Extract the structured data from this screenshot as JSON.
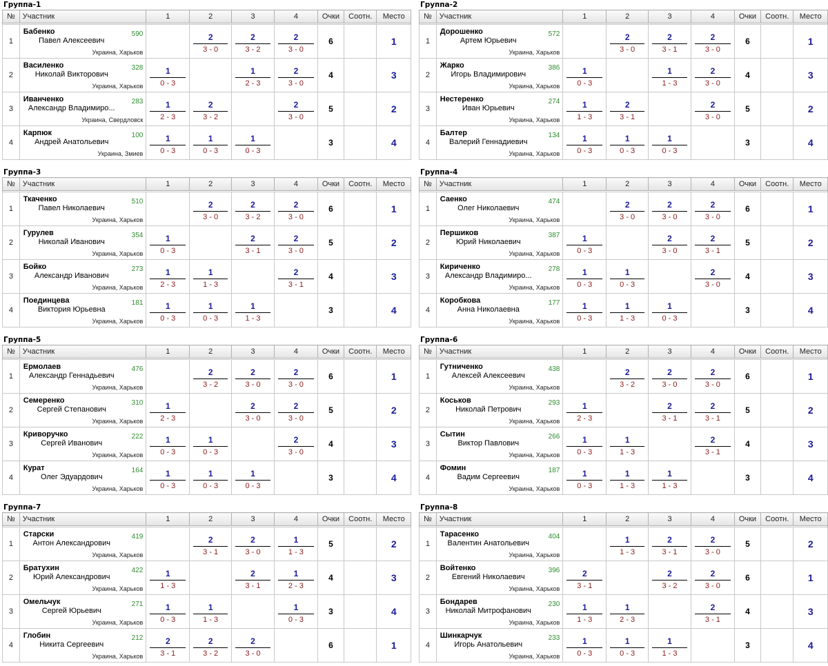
{
  "header": {
    "num": "№",
    "participant": "Участник",
    "cols": [
      "1",
      "2",
      "3",
      "4"
    ],
    "points": "Очки",
    "ratio": "Соотн.",
    "place": "Место"
  },
  "groups": [
    {
      "title": "Группа-1",
      "rows": [
        {
          "num": "1",
          "surname": "Бабенко",
          "firstname": "Павел Алексеевич",
          "rating": "590",
          "location": "Украина, Харьков",
          "results": [
            null,
            {
              "w": "2",
              "s": "3 - 0"
            },
            {
              "w": "2",
              "s": "3 - 2"
            },
            {
              "w": "2",
              "s": "3 - 0"
            }
          ],
          "points": "6",
          "ratio": "",
          "place": "1"
        },
        {
          "num": "2",
          "surname": "Василенко",
          "firstname": "Николай Викторович",
          "rating": "328",
          "location": "Украина, Харьков",
          "results": [
            {
              "w": "1",
              "s": "0 - 3"
            },
            null,
            {
              "w": "1",
              "s": "2 - 3"
            },
            {
              "w": "2",
              "s": "3 - 0"
            }
          ],
          "points": "4",
          "ratio": "",
          "place": "3"
        },
        {
          "num": "3",
          "surname": "Иванченко",
          "firstname": "Александр Владимиро...",
          "rating": "283",
          "location": "Украина, Свердловск",
          "results": [
            {
              "w": "1",
              "s": "2 - 3"
            },
            {
              "w": "2",
              "s": "3 - 2"
            },
            null,
            {
              "w": "2",
              "s": "3 - 0"
            }
          ],
          "points": "5",
          "ratio": "",
          "place": "2"
        },
        {
          "num": "4",
          "surname": "Карпюк",
          "firstname": "Андрей Анатольевич",
          "rating": "100",
          "location": "Украина, Змиев",
          "results": [
            {
              "w": "1",
              "s": "0 - 3"
            },
            {
              "w": "1",
              "s": "0 - 3"
            },
            {
              "w": "1",
              "s": "0 - 3"
            },
            null
          ],
          "points": "3",
          "ratio": "",
          "place": "4"
        }
      ]
    },
    {
      "title": "Группа-2",
      "rows": [
        {
          "num": "1",
          "surname": "Дорошенко",
          "firstname": "Артем Юрьевич",
          "rating": "572",
          "location": "Украина, Харьков",
          "results": [
            null,
            {
              "w": "2",
              "s": "3 - 0"
            },
            {
              "w": "2",
              "s": "3 - 1"
            },
            {
              "w": "2",
              "s": "3 - 0"
            }
          ],
          "points": "6",
          "ratio": "",
          "place": "1"
        },
        {
          "num": "2",
          "surname": "Жарко",
          "firstname": "Игорь Владимирович",
          "rating": "386",
          "location": "Украина, Харьков",
          "results": [
            {
              "w": "1",
              "s": "0 - 3"
            },
            null,
            {
              "w": "1",
              "s": "1 - 3"
            },
            {
              "w": "2",
              "s": "3 - 0"
            }
          ],
          "points": "4",
          "ratio": "",
          "place": "3"
        },
        {
          "num": "3",
          "surname": "Нестеренко",
          "firstname": "Иван Юрьевич",
          "rating": "274",
          "location": "Украина, Харьков",
          "results": [
            {
              "w": "1",
              "s": "1 - 3"
            },
            {
              "w": "2",
              "s": "3 - 1"
            },
            null,
            {
              "w": "2",
              "s": "3 - 0"
            }
          ],
          "points": "5",
          "ratio": "",
          "place": "2"
        },
        {
          "num": "4",
          "surname": "Балтер",
          "firstname": "Валерий Геннадиевич",
          "rating": "134",
          "location": "Украина, Харьков",
          "results": [
            {
              "w": "1",
              "s": "0 - 3"
            },
            {
              "w": "1",
              "s": "0 - 3"
            },
            {
              "w": "1",
              "s": "0 - 3"
            },
            null
          ],
          "points": "3",
          "ratio": "",
          "place": "4"
        }
      ]
    },
    {
      "title": "Группа-3",
      "rows": [
        {
          "num": "1",
          "surname": "Ткаченко",
          "firstname": "Павел Николаевич",
          "rating": "510",
          "location": "Украина, Харьков",
          "results": [
            null,
            {
              "w": "2",
              "s": "3 - 0"
            },
            {
              "w": "2",
              "s": "3 - 2"
            },
            {
              "w": "2",
              "s": "3 - 0"
            }
          ],
          "points": "6",
          "ratio": "",
          "place": "1"
        },
        {
          "num": "2",
          "surname": "Гурулев",
          "firstname": "Николай Иванович",
          "rating": "354",
          "location": "Украина, Харьков",
          "results": [
            {
              "w": "1",
              "s": "0 - 3"
            },
            null,
            {
              "w": "2",
              "s": "3 - 1"
            },
            {
              "w": "2",
              "s": "3 - 0"
            }
          ],
          "points": "5",
          "ratio": "",
          "place": "2"
        },
        {
          "num": "3",
          "surname": "Бойко",
          "firstname": "Александр Иванович",
          "rating": "273",
          "location": "Украина, Харьков",
          "results": [
            {
              "w": "1",
              "s": "2 - 3"
            },
            {
              "w": "1",
              "s": "1 - 3"
            },
            null,
            {
              "w": "2",
              "s": "3 - 1"
            }
          ],
          "points": "4",
          "ratio": "",
          "place": "3"
        },
        {
          "num": "4",
          "surname": "Поединцева",
          "firstname": "Виктория Юрьевна",
          "rating": "181",
          "location": "Украина, Харьков",
          "results": [
            {
              "w": "1",
              "s": "0 - 3"
            },
            {
              "w": "1",
              "s": "0 - 3"
            },
            {
              "w": "1",
              "s": "1 - 3"
            },
            null
          ],
          "points": "3",
          "ratio": "",
          "place": "4"
        }
      ]
    },
    {
      "title": "Группа-4",
      "rows": [
        {
          "num": "1",
          "surname": "Саенко",
          "firstname": "Олег Николаевич",
          "rating": "474",
          "location": "Украина, Харьков",
          "results": [
            null,
            {
              "w": "2",
              "s": "3 - 0"
            },
            {
              "w": "2",
              "s": "3 - 0"
            },
            {
              "w": "2",
              "s": "3 - 0"
            }
          ],
          "points": "6",
          "ratio": "",
          "place": "1"
        },
        {
          "num": "2",
          "surname": "Першиков",
          "firstname": "Юрий Николаевич",
          "rating": "387",
          "location": "Украина, Харьков",
          "results": [
            {
              "w": "1",
              "s": "0 - 3"
            },
            null,
            {
              "w": "2",
              "s": "3 - 0"
            },
            {
              "w": "2",
              "s": "3 - 1"
            }
          ],
          "points": "5",
          "ratio": "",
          "place": "2"
        },
        {
          "num": "3",
          "surname": "Кириченко",
          "firstname": "Александр Владимиро...",
          "rating": "278",
          "location": "Украина, Харьков",
          "results": [
            {
              "w": "1",
              "s": "0 - 3"
            },
            {
              "w": "1",
              "s": "0 - 3"
            },
            null,
            {
              "w": "2",
              "s": "3 - 0"
            }
          ],
          "points": "4",
          "ratio": "",
          "place": "3"
        },
        {
          "num": "4",
          "surname": "Коробкова",
          "firstname": "Анна Николаевна",
          "rating": "177",
          "location": "Украина, Харьков",
          "results": [
            {
              "w": "1",
              "s": "0 - 3"
            },
            {
              "w": "1",
              "s": "1 - 3"
            },
            {
              "w": "1",
              "s": "0 - 3"
            },
            null
          ],
          "points": "3",
          "ratio": "",
          "place": "4"
        }
      ]
    },
    {
      "title": "Группа-5",
      "rows": [
        {
          "num": "1",
          "surname": "Ермолаев",
          "firstname": "Александр Геннадьевич",
          "rating": "476",
          "location": "Украина, Харьков",
          "results": [
            null,
            {
              "w": "2",
              "s": "3 - 2"
            },
            {
              "w": "2",
              "s": "3 - 0"
            },
            {
              "w": "2",
              "s": "3 - 0"
            }
          ],
          "points": "6",
          "ratio": "",
          "place": "1"
        },
        {
          "num": "2",
          "surname": "Семеренко",
          "firstname": "Сергей Степанович",
          "rating": "310",
          "location": "Украина, Харьков",
          "results": [
            {
              "w": "1",
              "s": "2 - 3"
            },
            null,
            {
              "w": "2",
              "s": "3 - 0"
            },
            {
              "w": "2",
              "s": "3 - 0"
            }
          ],
          "points": "5",
          "ratio": "",
          "place": "2"
        },
        {
          "num": "3",
          "surname": "Криворучко",
          "firstname": "Сергей Иванович",
          "rating": "222",
          "location": "Украина, Харьков",
          "results": [
            {
              "w": "1",
              "s": "0 - 3"
            },
            {
              "w": "1",
              "s": "0 - 3"
            },
            null,
            {
              "w": "2",
              "s": "3 - 0"
            }
          ],
          "points": "4",
          "ratio": "",
          "place": "3"
        },
        {
          "num": "4",
          "surname": "Курат",
          "firstname": "Олег Эдуардович",
          "rating": "164",
          "location": "Украина, Харьков",
          "results": [
            {
              "w": "1",
              "s": "0 - 3"
            },
            {
              "w": "1",
              "s": "0 - 3"
            },
            {
              "w": "1",
              "s": "0 - 3"
            },
            null
          ],
          "points": "3",
          "ratio": "",
          "place": "4"
        }
      ]
    },
    {
      "title": "Группа-6",
      "rows": [
        {
          "num": "1",
          "surname": "Гутниченко",
          "firstname": "Алексей Алексеевич",
          "rating": "438",
          "location": "Украина, Харьков",
          "results": [
            null,
            {
              "w": "2",
              "s": "3 - 2"
            },
            {
              "w": "2",
              "s": "3 - 0"
            },
            {
              "w": "2",
              "s": "3 - 0"
            }
          ],
          "points": "6",
          "ratio": "",
          "place": "1"
        },
        {
          "num": "2",
          "surname": "Коськов",
          "firstname": "Николай Петрович",
          "rating": "293",
          "location": "Украина, Харьков",
          "results": [
            {
              "w": "1",
              "s": "2 - 3"
            },
            null,
            {
              "w": "2",
              "s": "3 - 1"
            },
            {
              "w": "2",
              "s": "3 - 1"
            }
          ],
          "points": "5",
          "ratio": "",
          "place": "2"
        },
        {
          "num": "3",
          "surname": "Сытин",
          "firstname": "Виктор Павлович",
          "rating": "266",
          "location": "Украина, Харьков",
          "results": [
            {
              "w": "1",
              "s": "0 - 3"
            },
            {
              "w": "1",
              "s": "1 - 3"
            },
            null,
            {
              "w": "2",
              "s": "3 - 1"
            }
          ],
          "points": "4",
          "ratio": "",
          "place": "3"
        },
        {
          "num": "4",
          "surname": "Фомин",
          "firstname": "Вадим Сергеевич",
          "rating": "187",
          "location": "Украина, Харьков",
          "results": [
            {
              "w": "1",
              "s": "0 - 3"
            },
            {
              "w": "1",
              "s": "1 - 3"
            },
            {
              "w": "1",
              "s": "1 - 3"
            },
            null
          ],
          "points": "3",
          "ratio": "",
          "place": "4"
        }
      ]
    },
    {
      "title": "Группа-7",
      "rows": [
        {
          "num": "1",
          "surname": "Старски",
          "firstname": "Антон Александрович",
          "rating": "419",
          "location": "Украина, Харьков",
          "results": [
            null,
            {
              "w": "2",
              "s": "3 - 1"
            },
            {
              "w": "2",
              "s": "3 - 0"
            },
            {
              "w": "1",
              "s": "1 - 3"
            }
          ],
          "points": "5",
          "ratio": "",
          "place": "2"
        },
        {
          "num": "2",
          "surname": "Братухин",
          "firstname": "Юрий Александрович",
          "rating": "422",
          "location": "Украина, Харьков",
          "results": [
            {
              "w": "1",
              "s": "1 - 3"
            },
            null,
            {
              "w": "2",
              "s": "3 - 1"
            },
            {
              "w": "1",
              "s": "2 - 3"
            }
          ],
          "points": "4",
          "ratio": "",
          "place": "3"
        },
        {
          "num": "3",
          "surname": "Омельчук",
          "firstname": "Сергей Юрьевич",
          "rating": "271",
          "location": "Украина, Харьков",
          "results": [
            {
              "w": "1",
              "s": "0 - 3"
            },
            {
              "w": "1",
              "s": "1 - 3"
            },
            null,
            {
              "w": "1",
              "s": "0 - 3"
            }
          ],
          "points": "3",
          "ratio": "",
          "place": "4"
        },
        {
          "num": "4",
          "surname": "Глобин",
          "firstname": "Никита Сергеевич",
          "rating": "212",
          "location": "Украина, Харьков",
          "results": [
            {
              "w": "2",
              "s": "3 - 1"
            },
            {
              "w": "2",
              "s": "3 - 2"
            },
            {
              "w": "2",
              "s": "3 - 0"
            },
            null
          ],
          "points": "6",
          "ratio": "",
          "place": "1"
        }
      ]
    },
    {
      "title": "Группа-8",
      "rows": [
        {
          "num": "1",
          "surname": "Тарасенко",
          "firstname": "Валентин Анатольевич",
          "rating": "404",
          "location": "Украина, Харьков",
          "results": [
            null,
            {
              "w": "1",
              "s": "1 - 3"
            },
            {
              "w": "2",
              "s": "3 - 1"
            },
            {
              "w": "2",
              "s": "3 - 0"
            }
          ],
          "points": "5",
          "ratio": "",
          "place": "2"
        },
        {
          "num": "2",
          "surname": "Войтенко",
          "firstname": "Евгений Николаевич",
          "rating": "396",
          "location": "Украина, Харьков",
          "results": [
            {
              "w": "2",
              "s": "3 - 1"
            },
            null,
            {
              "w": "2",
              "s": "3 - 2"
            },
            {
              "w": "2",
              "s": "3 - 0"
            }
          ],
          "points": "6",
          "ratio": "",
          "place": "1"
        },
        {
          "num": "3",
          "surname": "Бондарев",
          "firstname": "Николай Митрофанович",
          "rating": "230",
          "location": "Украина, Харьков",
          "results": [
            {
              "w": "1",
              "s": "1 - 3"
            },
            {
              "w": "1",
              "s": "2 - 3"
            },
            null,
            {
              "w": "2",
              "s": "3 - 1"
            }
          ],
          "points": "4",
          "ratio": "",
          "place": "3"
        },
        {
          "num": "4",
          "surname": "Шинкарчук",
          "firstname": "Игорь Анатольевич",
          "rating": "233",
          "location": "Украина, Харьков",
          "results": [
            {
              "w": "1",
              "s": "0 - 3"
            },
            {
              "w": "1",
              "s": "0 - 3"
            },
            {
              "w": "1",
              "s": "1 - 3"
            },
            null
          ],
          "points": "3",
          "ratio": "",
          "place": "4"
        }
      ]
    }
  ]
}
